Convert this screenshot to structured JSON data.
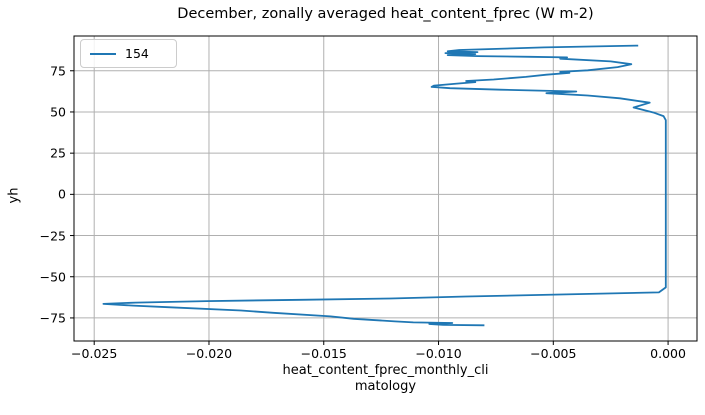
{
  "colors": {
    "line": "#1f77b4",
    "grid": "#b0b0b0",
    "spine": "#000000",
    "legend_border": "#cccccc",
    "background": "#ffffff"
  },
  "chart_data": {
    "type": "line",
    "title": "December, zonally averaged heat_content_fprec (W m-2)",
    "xlabel": "heat_content_fprec_monthly_climatology",
    "xlabel_lines": [
      "heat_content_fprec_monthly_cli",
      "matology"
    ],
    "ylabel": "yh",
    "grid": true,
    "legend_position": "upper left",
    "xlim": [
      -0.02588,
      0.00126
    ],
    "ylim": [
      -89.0,
      96.1
    ],
    "xticks": {
      "values": [
        -0.025,
        -0.02,
        -0.015,
        -0.01,
        -0.005,
        0.0
      ],
      "labels": [
        "−0.025",
        "−0.020",
        "−0.015",
        "−0.010",
        "−0.005",
        "0.000"
      ]
    },
    "yticks": {
      "values": [
        75,
        50,
        25,
        0,
        -25,
        -50,
        -75
      ],
      "labels": [
        "75",
        "50",
        "25",
        "0",
        "−25",
        "−50",
        "−75"
      ]
    },
    "series": [
      {
        "name": "154",
        "color": "#1f77b4",
        "points": [
          [
            -0.0013,
            90.3
          ],
          [
            -0.0054,
            89.2
          ],
          [
            -0.0091,
            87.6
          ],
          [
            -0.0096,
            86.8
          ],
          [
            -0.0083,
            86.3
          ],
          [
            -0.0097,
            85.7
          ],
          [
            -0.0084,
            85.1
          ],
          [
            -0.0096,
            84.5
          ],
          [
            -0.0083,
            83.9
          ],
          [
            -0.006,
            83.5
          ],
          [
            -0.0044,
            83.1
          ],
          [
            -0.0047,
            82.3
          ],
          [
            -0.0025,
            80.7
          ],
          [
            -0.0016,
            79.0
          ],
          [
            -0.0022,
            77.2
          ],
          [
            -0.0035,
            75.3
          ],
          [
            -0.0047,
            74.3
          ],
          [
            -0.0043,
            73.7
          ],
          [
            -0.0053,
            72.6
          ],
          [
            -0.0062,
            71.3
          ],
          [
            -0.0076,
            69.7
          ],
          [
            -0.0088,
            68.8
          ],
          [
            -0.0084,
            68.1
          ],
          [
            -0.0092,
            67.2
          ],
          [
            -0.0102,
            66.0
          ],
          [
            -0.0103,
            65.2
          ],
          [
            -0.0095,
            64.4
          ],
          [
            -0.0073,
            63.5
          ],
          [
            -0.004,
            62.4
          ],
          [
            -0.0053,
            61.4
          ],
          [
            -0.0035,
            60.0
          ],
          [
            -0.0021,
            58.3
          ],
          [
            -0.0008,
            55.6
          ],
          [
            -0.0015,
            52.7
          ],
          [
            -0.0006,
            49.5
          ],
          [
            -0.0002,
            47.5
          ],
          [
            -0.0001,
            45.0
          ],
          [
            -0.0001,
            0.0
          ],
          [
            -0.0001,
            -56.5
          ],
          [
            -0.0004,
            -59.5
          ],
          [
            -0.0047,
            -60.8
          ],
          [
            -0.0088,
            -62.0
          ],
          [
            -0.0121,
            -63.2
          ],
          [
            -0.016,
            -64.0
          ],
          [
            -0.0201,
            -64.8
          ],
          [
            -0.0232,
            -65.7
          ],
          [
            -0.0246,
            -66.5
          ],
          [
            -0.0233,
            -67.5
          ],
          [
            -0.0218,
            -68.5
          ],
          [
            -0.0186,
            -70.5
          ],
          [
            -0.0172,
            -71.9
          ],
          [
            -0.0147,
            -74.1
          ],
          [
            -0.0137,
            -75.5
          ],
          [
            -0.0119,
            -77.1
          ],
          [
            -0.0111,
            -77.7
          ],
          [
            -0.0094,
            -78.1
          ],
          [
            -0.0104,
            -78.7
          ],
          [
            -0.0098,
            -79.2
          ],
          [
            -0.008,
            -79.5
          ]
        ]
      }
    ]
  }
}
